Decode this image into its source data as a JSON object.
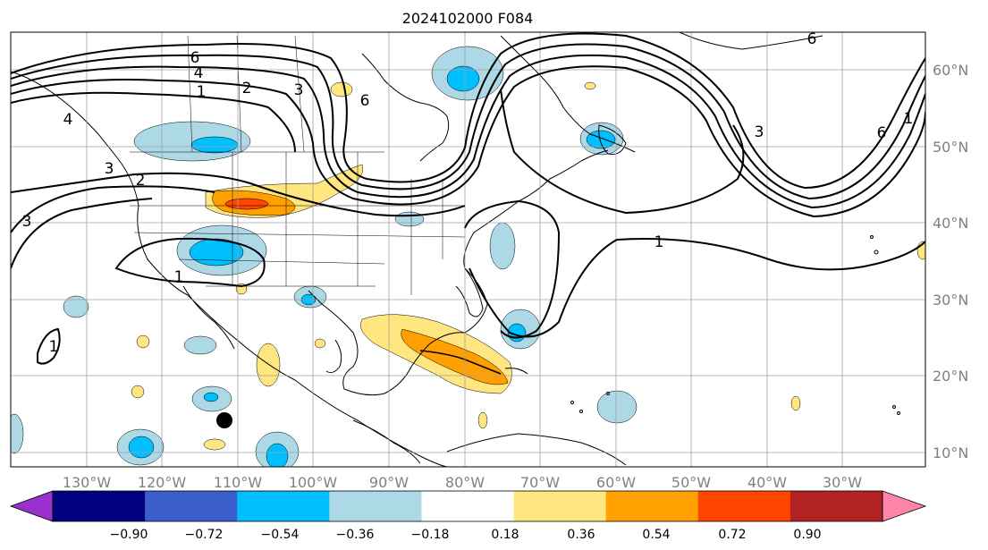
{
  "title": "2024102000 F084",
  "map": {
    "lon_ticks": [
      "130°W",
      "120°W",
      "110°W",
      "100°W",
      "90°W",
      "80°W",
      "70°W",
      "60°W",
      "50°W",
      "40°W",
      "30°W"
    ],
    "lat_ticks": [
      "60°N",
      "50°N",
      "40°N",
      "30°N",
      "20°N",
      "10°N"
    ],
    "contour_labels": [
      "6",
      "4",
      "2",
      "1",
      "1",
      "3",
      "2",
      "3",
      "4",
      "6",
      "6",
      "6",
      "3",
      "3",
      "1",
      "1",
      "1"
    ],
    "colors": {
      "land_outline": "#000000",
      "grid": "#a0a0a0",
      "contour": "#000000"
    }
  },
  "colorbar": {
    "labels": [
      "−0.90",
      "−0.72",
      "−0.54",
      "−0.36",
      "−0.18",
      "0.18",
      "0.36",
      "0.54",
      "0.72",
      "0.90"
    ],
    "colors": [
      "#9932cc",
      "#000080",
      "#3a5fcd",
      "#00bfff",
      "#add8e6",
      "#ffffff",
      "#ffe680",
      "#ff9f00",
      "#ff4500",
      "#b22222",
      "#ff85a8"
    ]
  }
}
